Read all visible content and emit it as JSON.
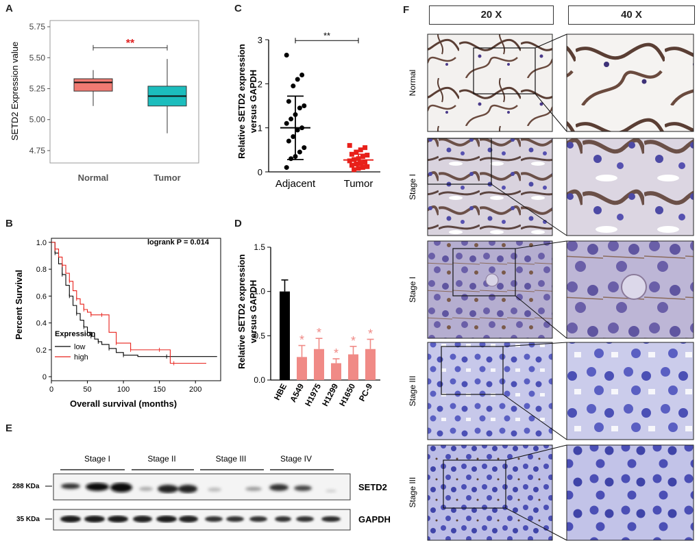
{
  "panels": {
    "A": {
      "label": "A",
      "ylabel": "SETD2 Expression value",
      "significance": "**",
      "chart_type": "box",
      "colors": {
        "Normal": "#f07a72",
        "Tumor": "#1cbdbd"
      }
    },
    "B": {
      "label": "B",
      "ylabel": "Percent Survival",
      "xlabel": "Overall survival (months)",
      "annotation": "logrank P = 0.014",
      "legend_title": "Expression",
      "legend": [
        {
          "name": "low",
          "color": "#000000"
        },
        {
          "name": "high",
          "color": "#e8201a"
        }
      ]
    },
    "C": {
      "label": "C",
      "ylabel_line1": "Relative SETD2 expression",
      "ylabel_line2": "versus GAPDH",
      "significance": "**"
    },
    "D": {
      "label": "D",
      "ylabel_line1": "Relative SETD2 expression",
      "ylabel_line2": "versus GAPDH",
      "star": "*"
    },
    "E": {
      "label": "E",
      "stages": [
        "Stage I",
        "Stage II",
        "Stage III",
        "Stage IV"
      ],
      "markers": [
        "288 KDa",
        "35 KDa"
      ],
      "bands": [
        "SETD2",
        "GAPDH"
      ]
    },
    "F": {
      "label": "F",
      "col_headers": [
        "20 X",
        "40 X"
      ],
      "rows": [
        "Normal",
        "Stage I",
        "Stage I",
        "Stage III",
        "Stage III"
      ]
    }
  },
  "chart_data": [
    {
      "type": "box",
      "panel": "A",
      "categories": [
        "Normal",
        "Tumor"
      ],
      "boxes": [
        {
          "name": "Normal",
          "min": 5.11,
          "q1": 5.23,
          "median": 5.3,
          "q3": 5.33,
          "max": 5.4
        },
        {
          "name": "Tumor",
          "min": 4.89,
          "q1": 5.11,
          "median": 5.19,
          "q3": 5.27,
          "max": 5.49
        }
      ],
      "ylabel": "SETD2 Expression value",
      "yticks": [
        "4.75",
        "5.00",
        "5.25",
        "5.50",
        "5.75"
      ],
      "ylim": [
        4.65,
        5.8
      ]
    },
    {
      "type": "line",
      "panel": "B",
      "xlabel": "Overall survival (months)",
      "ylabel": "Percent Survival",
      "xticks": [
        "0",
        "50",
        "100",
        "150",
        "200"
      ],
      "yticks": [
        "0",
        "0.2",
        "0.4",
        "0.6",
        "0.8",
        "1.0"
      ],
      "xlim": [
        0,
        235
      ],
      "ylim": [
        -0.03,
        1.03
      ],
      "series": [
        {
          "name": "low",
          "x": [
            0,
            5,
            10,
            15,
            20,
            25,
            30,
            35,
            40,
            45,
            50,
            55,
            60,
            65,
            70,
            80,
            90,
            100,
            120,
            160,
            230
          ],
          "y": [
            1.0,
            0.92,
            0.84,
            0.76,
            0.68,
            0.6,
            0.53,
            0.47,
            0.42,
            0.37,
            0.33,
            0.3,
            0.28,
            0.26,
            0.24,
            0.21,
            0.18,
            0.16,
            0.15,
            0.15,
            0.15
          ]
        },
        {
          "name": "high",
          "x": [
            0,
            5,
            10,
            15,
            20,
            25,
            30,
            35,
            40,
            45,
            50,
            55,
            60,
            70,
            80,
            90,
            100,
            110,
            130,
            150,
            165,
            170,
            215
          ],
          "y": [
            1.0,
            0.95,
            0.89,
            0.83,
            0.77,
            0.71,
            0.64,
            0.58,
            0.54,
            0.5,
            0.48,
            0.46,
            0.46,
            0.46,
            0.33,
            0.25,
            0.25,
            0.2,
            0.2,
            0.2,
            0.1,
            0.1,
            0.1
          ]
        }
      ]
    },
    {
      "type": "scatter",
      "panel": "C",
      "categories": [
        "Adjacent",
        "Tumor"
      ],
      "yticks": [
        "0",
        "1",
        "2",
        "3"
      ],
      "ylim": [
        0,
        3
      ],
      "series": [
        {
          "name": "Adjacent",
          "values": [
            2.65,
            2.2,
            2.1,
            1.95,
            1.6,
            1.5,
            1.45,
            1.3,
            1.2,
            1.1,
            1.0,
            0.95,
            0.8,
            0.7,
            0.55,
            0.45,
            0.35,
            0.3,
            0.1
          ],
          "mean": 1.0,
          "sd_low": 0.28,
          "sd_high": 1.72
        },
        {
          "name": "Tumor",
          "values": [
            0.6,
            0.55,
            0.5,
            0.45,
            0.4,
            0.38,
            0.35,
            0.3,
            0.28,
            0.25,
            0.22,
            0.2,
            0.18,
            0.15,
            0.12,
            0.1,
            0.08,
            0.05
          ],
          "mean": 0.27,
          "sd_low": 0.15,
          "sd_high": 0.4
        }
      ]
    },
    {
      "type": "bar",
      "panel": "D",
      "categories": [
        "HBE",
        "A549",
        "H1975",
        "H1299",
        "H1650",
        "PC-9"
      ],
      "values": [
        1.0,
        0.26,
        0.35,
        0.19,
        0.29,
        0.35
      ],
      "errors": [
        0.13,
        0.13,
        0.12,
        0.05,
        0.09,
        0.11
      ],
      "yticks": [
        "0.0",
        "0.5",
        "1.0",
        "1.5"
      ],
      "ylim": [
        0,
        1.5
      ],
      "colors": [
        "#000000",
        "#f08a86",
        "#f08a86",
        "#f08a86",
        "#f08a86",
        "#f08a86"
      ]
    }
  ]
}
